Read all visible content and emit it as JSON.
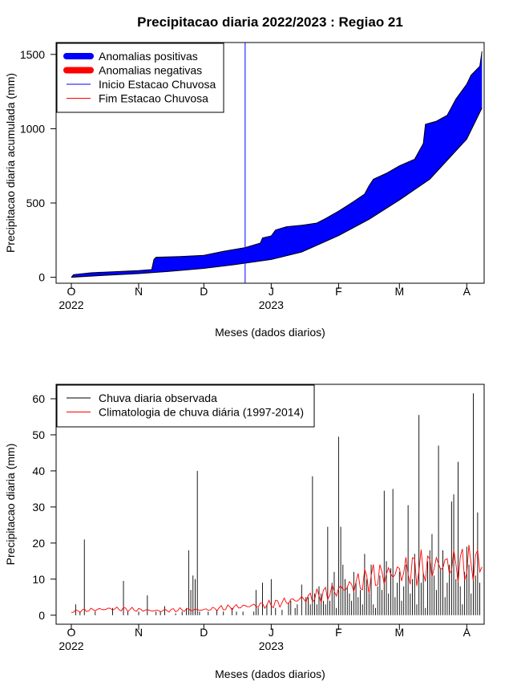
{
  "figure_title": "Precipitacao diaria 2022/2023 : Regiao 21",
  "chart_data": [
    {
      "type": "area",
      "title": "Precipitacao diaria 2022/2023 : Regiao 21",
      "xlabel": "Meses (dados diarios)",
      "ylabel": "Precipitacao diaria acumulada (mm)",
      "x_tick_labels": [
        "O",
        "N",
        "D",
        "J",
        "F",
        "M",
        "A"
      ],
      "x_year_labels": [
        "2022",
        "2023"
      ],
      "x_tick_dates": [
        "2022-10-01",
        "2022-11-01",
        "2022-12-01",
        "2023-01-01",
        "2023-02-01",
        "2023-03-01",
        "2023-04-01"
      ],
      "x_range": [
        "2022-09-24",
        "2023-04-09"
      ],
      "y_ticks": [
        0,
        500,
        1000,
        1500
      ],
      "ylim": [
        -40,
        1580
      ],
      "grid": false,
      "legend_position": "top-left",
      "legend": [
        {
          "label": "Anomalias positivas",
          "color": "#0000ff",
          "style": "thick"
        },
        {
          "label": "Anomalias negativas",
          "color": "#ff0000",
          "style": "thick"
        },
        {
          "label": "Inicio Estacao Chuvosa",
          "color": "#0000ff",
          "style": "line"
        },
        {
          "label": "Fim Estacao Chuvosa",
          "color": "#ff0000",
          "style": "line"
        }
      ],
      "season_start_date": "2022-12-20",
      "series": [
        {
          "name": "observed_cumulative",
          "points": [
            [
              "2022-10-01",
              0
            ],
            [
              "2022-10-02",
              18
            ],
            [
              "2022-10-10",
              30
            ],
            [
              "2022-10-20",
              37
            ],
            [
              "2022-11-01",
              45
            ],
            [
              "2022-11-07",
              52
            ],
            [
              "2022-11-08",
              120
            ],
            [
              "2022-11-09",
              135
            ],
            [
              "2022-11-20",
              140
            ],
            [
              "2022-12-01",
              148
            ],
            [
              "2022-12-10",
              175
            ],
            [
              "2022-12-20",
              200
            ],
            [
              "2022-12-27",
              230
            ],
            [
              "2022-12-28",
              265
            ],
            [
              "2023-01-01",
              278
            ],
            [
              "2023-01-03",
              318
            ],
            [
              "2023-01-08",
              340
            ],
            [
              "2023-01-15",
              350
            ],
            [
              "2023-01-22",
              365
            ],
            [
              "2023-01-26",
              395
            ],
            [
              "2023-02-01",
              445
            ],
            [
              "2023-02-08",
              510
            ],
            [
              "2023-02-13",
              560
            ],
            [
              "2023-02-15",
              615
            ],
            [
              "2023-02-17",
              660
            ],
            [
              "2023-02-23",
              700
            ],
            [
              "2023-03-01",
              750
            ],
            [
              "2023-03-08",
              795
            ],
            [
              "2023-03-12",
              900
            ],
            [
              "2023-03-13",
              1030
            ],
            [
              "2023-03-18",
              1050
            ],
            [
              "2023-03-23",
              1090
            ],
            [
              "2023-03-27",
              1200
            ],
            [
              "2023-04-01",
              1300
            ],
            [
              "2023-04-03",
              1360
            ],
            [
              "2023-04-07",
              1420
            ],
            [
              "2023-04-08",
              1520
            ]
          ]
        },
        {
          "name": "climatology_cumulative",
          "points": [
            [
              "2022-10-01",
              0
            ],
            [
              "2022-10-15",
              12
            ],
            [
              "2022-11-01",
              25
            ],
            [
              "2022-11-15",
              40
            ],
            [
              "2022-12-01",
              60
            ],
            [
              "2022-12-15",
              85
            ],
            [
              "2023-01-01",
              120
            ],
            [
              "2023-01-15",
              170
            ],
            [
              "2023-02-01",
              280
            ],
            [
              "2023-02-15",
              390
            ],
            [
              "2023-03-01",
              520
            ],
            [
              "2023-03-15",
              660
            ],
            [
              "2023-04-01",
              930
            ],
            [
              "2023-04-08",
              1140
            ]
          ]
        }
      ]
    },
    {
      "type": "bar",
      "xlabel": "Meses (dados diarios)",
      "ylabel": "Precipitacao diaria (mm)",
      "x_tick_labels": [
        "O",
        "N",
        "D",
        "J",
        "F",
        "M",
        "A"
      ],
      "x_year_labels": [
        "2022",
        "2023"
      ],
      "x_tick_dates": [
        "2022-10-01",
        "2022-11-01",
        "2022-12-01",
        "2023-01-01",
        "2023-02-01",
        "2023-03-01",
        "2023-04-01"
      ],
      "x_range": [
        "2022-09-24",
        "2023-04-09"
      ],
      "y_ticks": [
        0,
        10,
        20,
        30,
        40,
        50,
        60
      ],
      "ylim": [
        -2.5,
        64
      ],
      "grid": false,
      "legend_position": "top-left",
      "legend": [
        {
          "label": "Chuva diaria observada",
          "color": "#000000",
          "style": "line"
        },
        {
          "label": "Climatologia de chuva diária (1997-2014)",
          "color": "#ff0000",
          "style": "line"
        }
      ],
      "series": [
        {
          "name": "Chuva diaria observada",
          "x_start": "2022-10-01",
          "values": [
            0,
            3,
            1,
            0,
            0,
            0,
            21,
            0,
            0,
            0,
            0,
            0,
            0,
            0,
            0,
            0,
            0,
            0,
            0,
            0,
            0,
            0,
            0,
            0,
            0,
            0,
            0,
            0,
            0,
            0,
            0,
            0,
            0,
            0,
            0,
            0,
            0,
            0,
            0,
            0,
            0,
            0,
            0,
            0,
            0,
            0,
            0,
            0,
            0,
            0,
            0,
            0,
            0,
            0,
            0,
            0,
            0,
            0,
            0,
            0,
            0,
            0,
            0,
            0,
            0,
            0,
            0,
            0,
            0,
            0,
            0,
            0,
            0,
            0,
            0,
            0,
            0,
            0,
            0,
            0,
            0,
            0,
            0,
            0,
            0,
            0,
            0,
            0,
            0,
            0,
            0,
            0,
            0,
            0,
            0,
            0,
            0,
            0,
            0,
            0,
            0,
            0,
            0,
            0,
            0,
            0,
            0,
            0,
            0,
            0,
            0,
            0,
            0,
            0,
            0,
            0,
            0,
            0,
            0,
            0,
            0,
            0,
            0,
            0,
            0,
            0,
            0,
            0,
            0,
            0,
            0,
            0,
            0,
            0,
            0,
            0,
            0,
            0,
            0,
            0,
            0,
            0,
            0,
            0,
            0,
            0,
            0,
            0,
            0,
            0,
            0,
            0,
            0,
            0,
            0,
            0,
            0,
            0,
            0,
            0,
            0,
            0,
            0,
            0,
            0,
            0,
            0,
            0,
            0,
            0,
            0,
            0,
            0,
            0,
            0,
            0,
            0,
            0,
            0,
            0,
            0,
            0,
            0,
            0,
            0,
            0,
            0,
            0,
            0,
            0,
            0,
            0,
            0,
            0,
            0,
            0,
            0,
            0,
            0
          ],
          "sparse": [
            [
              "2022-10-03",
              3
            ],
            [
              "2022-10-05",
              1
            ],
            [
              "2022-10-07",
              21
            ],
            [
              "2022-10-12",
              1
            ],
            [
              "2022-10-20",
              2
            ],
            [
              "2022-10-25",
              9.5
            ],
            [
              "2022-10-27",
              1
            ],
            [
              "2022-11-01",
              1
            ],
            [
              "2022-11-05",
              5.5
            ],
            [
              "2022-11-09",
              1
            ],
            [
              "2022-11-11",
              1
            ],
            [
              "2022-11-13",
              2.5
            ],
            [
              "2022-11-18",
              0.5
            ],
            [
              "2022-11-21",
              1
            ],
            [
              "2022-11-23",
              2
            ],
            [
              "2022-11-24",
              18
            ],
            [
              "2022-11-25",
              7
            ],
            [
              "2022-11-26",
              11
            ],
            [
              "2022-11-27",
              10
            ],
            [
              "2022-11-28",
              40
            ],
            [
              "2022-11-29",
              1
            ],
            [
              "2022-12-03",
              1
            ],
            [
              "2022-12-07",
              1.5
            ],
            [
              "2022-12-10",
              1
            ],
            [
              "2022-12-14",
              2
            ],
            [
              "2022-12-16",
              1
            ],
            [
              "2022-12-19",
              1
            ],
            [
              "2022-12-24",
              1
            ],
            [
              "2022-12-25",
              7
            ],
            [
              "2022-12-26",
              2
            ],
            [
              "2022-12-28",
              9
            ],
            [
              "2022-12-30",
              3
            ],
            [
              "2023-01-01",
              10
            ],
            [
              "2023-01-03",
              2
            ],
            [
              "2023-01-06",
              1.5
            ],
            [
              "2023-01-09",
              3.5
            ],
            [
              "2023-01-12",
              2
            ],
            [
              "2023-01-15",
              8.5
            ],
            [
              "2023-01-17",
              5
            ],
            [
              "2023-01-19",
              3
            ],
            [
              "2023-01-20",
              38.5
            ],
            [
              "2023-01-22",
              3
            ],
            [
              "2023-01-24",
              6
            ],
            [
              "2023-01-26",
              3
            ],
            [
              "2023-01-27",
              24.5
            ],
            [
              "2023-01-28",
              4
            ],
            [
              "2023-01-30",
              12
            ],
            [
              "2023-01-31",
              2
            ]
          ]
        },
        {
          "name": "Climatologia de chuva diária (1997-2014)",
          "points": [
            [
              "2022-10-01",
              1
            ],
            [
              "2022-10-10",
              1.5
            ],
            [
              "2022-10-20",
              1.8
            ],
            [
              "2022-11-01",
              1.5
            ],
            [
              "2022-11-10",
              1.2
            ],
            [
              "2022-11-20",
              1.5
            ],
            [
              "2022-12-01",
              1.5
            ],
            [
              "2022-12-10",
              2
            ],
            [
              "2022-12-20",
              2.5
            ],
            [
              "2023-01-01",
              3
            ],
            [
              "2023-01-10",
              4
            ],
            [
              "2023-01-20",
              5
            ],
            [
              "2023-02-01",
              7
            ],
            [
              "2023-02-10",
              9
            ],
            [
              "2023-02-20",
              11
            ],
            [
              "2023-03-01",
              12
            ],
            [
              "2023-03-10",
              13
            ],
            [
              "2023-03-20",
              14
            ],
            [
              "2023-04-01",
              14
            ],
            [
              "2023-04-08",
              15
            ]
          ]
        }
      ]
    }
  ]
}
